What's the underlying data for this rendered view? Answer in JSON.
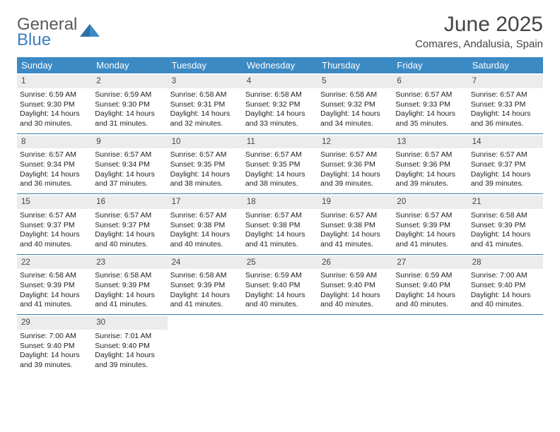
{
  "logo": {
    "word1": "General",
    "word2": "Blue"
  },
  "title": "June 2025",
  "location": "Comares, Andalusia, Spain",
  "colors": {
    "header_bg": "#3b8ac4",
    "header_text": "#ffffff",
    "daynum_bg": "#ececec",
    "week_border": "#3b7fa8",
    "text": "#222222",
    "logo_gray": "#5a5a5a",
    "logo_blue": "#3b7fc4"
  },
  "weekdays": [
    "Sunday",
    "Monday",
    "Tuesday",
    "Wednesday",
    "Thursday",
    "Friday",
    "Saturday"
  ],
  "weeks": [
    [
      {
        "n": "1",
        "sr": "6:59 AM",
        "ss": "9:30 PM",
        "dl": "14 hours and 30 minutes."
      },
      {
        "n": "2",
        "sr": "6:59 AM",
        "ss": "9:30 PM",
        "dl": "14 hours and 31 minutes."
      },
      {
        "n": "3",
        "sr": "6:58 AM",
        "ss": "9:31 PM",
        "dl": "14 hours and 32 minutes."
      },
      {
        "n": "4",
        "sr": "6:58 AM",
        "ss": "9:32 PM",
        "dl": "14 hours and 33 minutes."
      },
      {
        "n": "5",
        "sr": "6:58 AM",
        "ss": "9:32 PM",
        "dl": "14 hours and 34 minutes."
      },
      {
        "n": "6",
        "sr": "6:57 AM",
        "ss": "9:33 PM",
        "dl": "14 hours and 35 minutes."
      },
      {
        "n": "7",
        "sr": "6:57 AM",
        "ss": "9:33 PM",
        "dl": "14 hours and 36 minutes."
      }
    ],
    [
      {
        "n": "8",
        "sr": "6:57 AM",
        "ss": "9:34 PM",
        "dl": "14 hours and 36 minutes."
      },
      {
        "n": "9",
        "sr": "6:57 AM",
        "ss": "9:34 PM",
        "dl": "14 hours and 37 minutes."
      },
      {
        "n": "10",
        "sr": "6:57 AM",
        "ss": "9:35 PM",
        "dl": "14 hours and 38 minutes."
      },
      {
        "n": "11",
        "sr": "6:57 AM",
        "ss": "9:35 PM",
        "dl": "14 hours and 38 minutes."
      },
      {
        "n": "12",
        "sr": "6:57 AM",
        "ss": "9:36 PM",
        "dl": "14 hours and 39 minutes."
      },
      {
        "n": "13",
        "sr": "6:57 AM",
        "ss": "9:36 PM",
        "dl": "14 hours and 39 minutes."
      },
      {
        "n": "14",
        "sr": "6:57 AM",
        "ss": "9:37 PM",
        "dl": "14 hours and 39 minutes."
      }
    ],
    [
      {
        "n": "15",
        "sr": "6:57 AM",
        "ss": "9:37 PM",
        "dl": "14 hours and 40 minutes."
      },
      {
        "n": "16",
        "sr": "6:57 AM",
        "ss": "9:37 PM",
        "dl": "14 hours and 40 minutes."
      },
      {
        "n": "17",
        "sr": "6:57 AM",
        "ss": "9:38 PM",
        "dl": "14 hours and 40 minutes."
      },
      {
        "n": "18",
        "sr": "6:57 AM",
        "ss": "9:38 PM",
        "dl": "14 hours and 41 minutes."
      },
      {
        "n": "19",
        "sr": "6:57 AM",
        "ss": "9:38 PM",
        "dl": "14 hours and 41 minutes."
      },
      {
        "n": "20",
        "sr": "6:57 AM",
        "ss": "9:39 PM",
        "dl": "14 hours and 41 minutes."
      },
      {
        "n": "21",
        "sr": "6:58 AM",
        "ss": "9:39 PM",
        "dl": "14 hours and 41 minutes."
      }
    ],
    [
      {
        "n": "22",
        "sr": "6:58 AM",
        "ss": "9:39 PM",
        "dl": "14 hours and 41 minutes."
      },
      {
        "n": "23",
        "sr": "6:58 AM",
        "ss": "9:39 PM",
        "dl": "14 hours and 41 minutes."
      },
      {
        "n": "24",
        "sr": "6:58 AM",
        "ss": "9:39 PM",
        "dl": "14 hours and 41 minutes."
      },
      {
        "n": "25",
        "sr": "6:59 AM",
        "ss": "9:40 PM",
        "dl": "14 hours and 40 minutes."
      },
      {
        "n": "26",
        "sr": "6:59 AM",
        "ss": "9:40 PM",
        "dl": "14 hours and 40 minutes."
      },
      {
        "n": "27",
        "sr": "6:59 AM",
        "ss": "9:40 PM",
        "dl": "14 hours and 40 minutes."
      },
      {
        "n": "28",
        "sr": "7:00 AM",
        "ss": "9:40 PM",
        "dl": "14 hours and 40 minutes."
      }
    ],
    [
      {
        "n": "29",
        "sr": "7:00 AM",
        "ss": "9:40 PM",
        "dl": "14 hours and 39 minutes."
      },
      {
        "n": "30",
        "sr": "7:01 AM",
        "ss": "9:40 PM",
        "dl": "14 hours and 39 minutes."
      },
      null,
      null,
      null,
      null,
      null
    ]
  ],
  "labels": {
    "sunrise": "Sunrise: ",
    "sunset": "Sunset: ",
    "daylight": "Daylight: "
  }
}
